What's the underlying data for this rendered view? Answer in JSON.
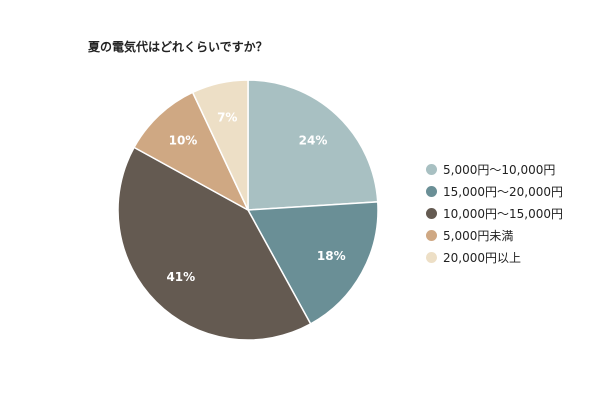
{
  "chart_data": {
    "type": "pie",
    "title": "夏の電気代はどれくらいですか？",
    "categories": [
      "5,000円〜10,000円",
      "15,000円〜20,000円",
      "10,000円〜15,000円",
      "5,000円未満",
      "20,000円以上"
    ],
    "values": [
      24,
      18,
      41,
      10,
      7
    ],
    "data_labels": [
      "24%",
      "18%",
      "41%",
      "10%",
      "7%"
    ],
    "colors": [
      "#a8c0c2",
      "#6a8f96",
      "#645a51",
      "#cfa883",
      "#eddfc6"
    ],
    "legend_position": "right",
    "start_angle": "top",
    "direction": "clockwise"
  }
}
